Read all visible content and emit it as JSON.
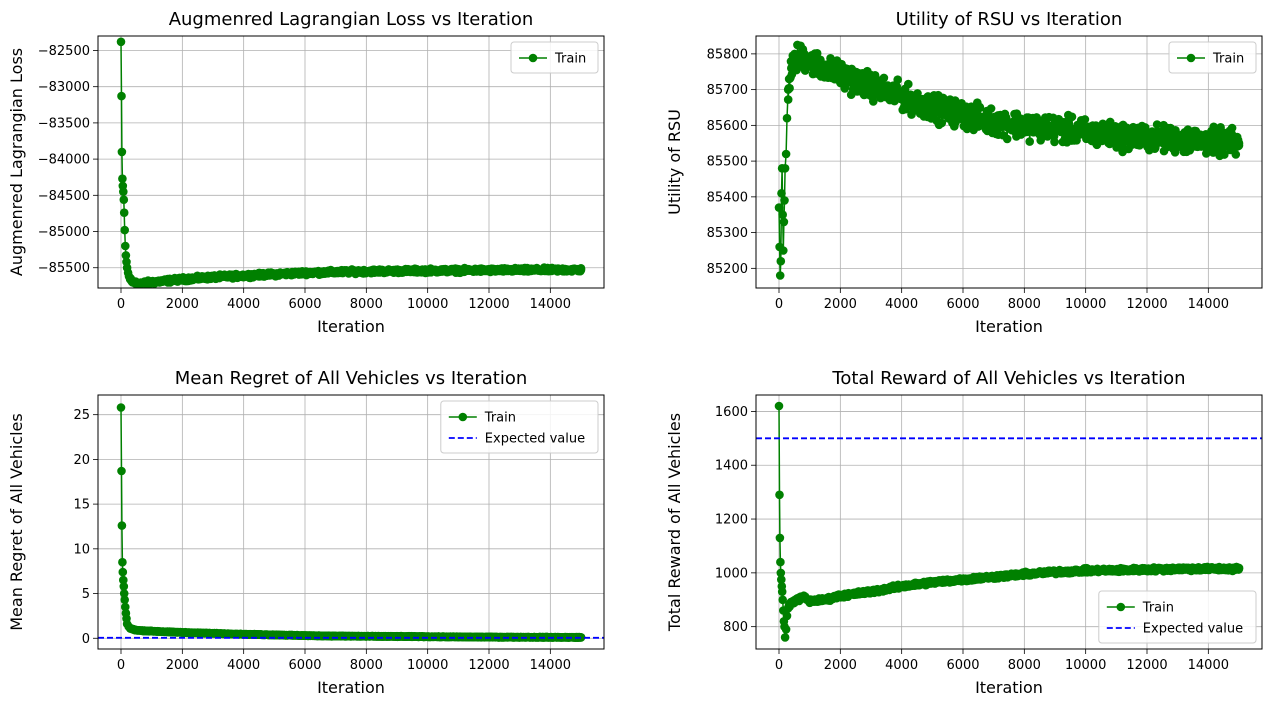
{
  "chart_data": [
    {
      "type": "line",
      "title": "Augmenred Lagrangian Loss vs Iteration",
      "xlabel": "Iteration",
      "ylabel": "Augmenred Lagrangian Loss",
      "xlim": [
        -750,
        15750
      ],
      "ylim": [
        -85780,
        -82300
      ],
      "xticks": [
        0,
        2000,
        4000,
        6000,
        8000,
        10000,
        12000,
        14000
      ],
      "xtick_labels": [
        "0",
        "2000",
        "4000",
        "6000",
        "8000",
        "10000",
        "12000",
        "14000"
      ],
      "yticks": [
        -85500,
        -85000,
        -84500,
        -84000,
        -83500,
        -83000,
        -82500
      ],
      "ytick_labels": [
        "−85500",
        "−85000",
        "−84500",
        "−84000",
        "−83500",
        "−83000",
        "−82500"
      ],
      "grid": true,
      "legend": {
        "placement": "top-right",
        "entries": [
          {
            "label": "Train",
            "style": "line-marker"
          }
        ]
      },
      "series": [
        {
          "name": "Train",
          "color": "#008000",
          "marker": "circle",
          "x": [
            0,
            15,
            30,
            45,
            60,
            75,
            90,
            105,
            120,
            140,
            160,
            180,
            200,
            230,
            260,
            300,
            350,
            400,
            500,
            600,
            800,
            1000,
            1500,
            2000,
            3000,
            4000,
            5000,
            6000,
            7000,
            8000,
            9000,
            10000,
            11000,
            12000,
            13000,
            14000,
            15000
          ],
          "y": [
            -82380,
            -83130,
            -83900,
            -84270,
            -84370,
            -84450,
            -84560,
            -84740,
            -84980,
            -85200,
            -85330,
            -85420,
            -85500,
            -85570,
            -85620,
            -85660,
            -85690,
            -85700,
            -85710,
            -85715,
            -85710,
            -85700,
            -85680,
            -85660,
            -85630,
            -85610,
            -85590,
            -85570,
            -85560,
            -85550,
            -85545,
            -85540,
            -85538,
            -85535,
            -85532,
            -85530,
            -85530
          ],
          "noise": 22
        }
      ]
    },
    {
      "type": "line",
      "title": "Utility of RSU vs Iteration",
      "xlabel": "Iteration",
      "ylabel": "Utility of RSU",
      "xlim": [
        -750,
        15750
      ],
      "ylim": [
        85145,
        85850
      ],
      "xticks": [
        0,
        2000,
        4000,
        6000,
        8000,
        10000,
        12000,
        14000
      ],
      "xtick_labels": [
        "0",
        "2000",
        "4000",
        "6000",
        "8000",
        "10000",
        "12000",
        "14000"
      ],
      "yticks": [
        85200,
        85300,
        85400,
        85500,
        85600,
        85700,
        85800
      ],
      "ytick_labels": [
        "85200",
        "85300",
        "85400",
        "85500",
        "85600",
        "85700",
        "85800"
      ],
      "grid": true,
      "legend": {
        "placement": "top-right",
        "entries": [
          {
            "label": "Train",
            "style": "line-marker"
          }
        ]
      },
      "series": [
        {
          "name": "Train",
          "color": "#008000",
          "marker": "circle",
          "x": [
            0,
            20,
            40,
            60,
            80,
            100,
            120,
            140,
            160,
            180,
            200,
            230,
            260,
            300,
            400,
            600,
            800,
            1000,
            1500,
            2000,
            3000,
            4000,
            5000,
            6000,
            7000,
            8000,
            9000,
            10000,
            11000,
            12000,
            13000,
            14000,
            15000
          ],
          "y": [
            85370,
            85260,
            85180,
            85220,
            85410,
            85480,
            85350,
            85250,
            85330,
            85390,
            85480,
            85520,
            85620,
            85700,
            85760,
            85790,
            85790,
            85780,
            85760,
            85740,
            85710,
            85680,
            85650,
            85630,
            85610,
            85600,
            85590,
            85580,
            85570,
            85565,
            85560,
            85555,
            85550
          ],
          "noise": 30
        }
      ]
    },
    {
      "type": "line",
      "title": "Mean Regret of All Vehicles vs Iteration",
      "xlabel": "Iteration",
      "ylabel": "Mean Regret of All Vehicles",
      "xlim": [
        -750,
        15750
      ],
      "ylim": [
        -1.2,
        27.2
      ],
      "xticks": [
        0,
        2000,
        4000,
        6000,
        8000,
        10000,
        12000,
        14000
      ],
      "xtick_labels": [
        "0",
        "2000",
        "4000",
        "6000",
        "8000",
        "10000",
        "12000",
        "14000"
      ],
      "yticks": [
        0,
        5,
        10,
        15,
        20,
        25
      ],
      "ytick_labels": [
        "0",
        "5",
        "10",
        "15",
        "20",
        "25"
      ],
      "grid": true,
      "legend": {
        "placement": "top-right",
        "entries": [
          {
            "label": "Train",
            "style": "line-marker"
          },
          {
            "label": "Expected value",
            "style": "dashed"
          }
        ]
      },
      "expected_value": 0.05,
      "expected_color": "#0000ff",
      "series": [
        {
          "name": "Train",
          "color": "#008000",
          "marker": "circle",
          "x": [
            0,
            15,
            30,
            45,
            60,
            75,
            90,
            105,
            120,
            140,
            160,
            180,
            200,
            250,
            300,
            400,
            500,
            700,
            1000,
            1500,
            2000,
            3000,
            4000,
            5000,
            6000,
            7000,
            8000,
            9000,
            10000,
            11000,
            12000,
            13000,
            14000,
            15000
          ],
          "y": [
            25.8,
            18.7,
            12.6,
            8.5,
            7.4,
            6.5,
            5.8,
            5.0,
            4.3,
            3.5,
            2.8,
            2.2,
            1.6,
            1.3,
            1.1,
            1.0,
            0.9,
            0.85,
            0.8,
            0.72,
            0.65,
            0.55,
            0.45,
            0.38,
            0.3,
            0.25,
            0.22,
            0.2,
            0.18,
            0.15,
            0.13,
            0.12,
            0.11,
            0.1
          ],
          "noise": 0.03
        }
      ]
    },
    {
      "type": "line",
      "title": "Total Reward of All Vehicles vs Iteration",
      "xlabel": "Iteration",
      "ylabel": "Total Reward of All Vehicles",
      "xlim": [
        -750,
        15750
      ],
      "ylim": [
        717,
        1661
      ],
      "xticks": [
        0,
        2000,
        4000,
        6000,
        8000,
        10000,
        12000,
        14000
      ],
      "xtick_labels": [
        "0",
        "2000",
        "4000",
        "6000",
        "8000",
        "10000",
        "12000",
        "14000"
      ],
      "yticks": [
        800,
        1000,
        1200,
        1400,
        1600
      ],
      "ytick_labels": [
        "800",
        "1000",
        "1200",
        "1400",
        "1600"
      ],
      "grid": true,
      "legend": {
        "placement": "lower-right",
        "entries": [
          {
            "label": "Train",
            "style": "line-marker"
          },
          {
            "label": "Expected value",
            "style": "dashed"
          }
        ]
      },
      "expected_value": 1500,
      "expected_color": "#0000ff",
      "series": [
        {
          "name": "Train",
          "color": "#008000",
          "marker": "circle",
          "x": [
            0,
            15,
            30,
            45,
            60,
            75,
            90,
            105,
            120,
            140,
            160,
            180,
            200,
            230,
            260,
            300,
            400,
            600,
            800,
            1000,
            1500,
            2000,
            3000,
            4000,
            5000,
            6000,
            7000,
            8000,
            9000,
            10000,
            11000,
            12000,
            13000,
            14000,
            15000
          ],
          "y": [
            1620,
            1290,
            1130,
            1040,
            1000,
            975,
            950,
            930,
            900,
            860,
            820,
            800,
            760,
            790,
            840,
            870,
            890,
            900,
            910,
            895,
            900,
            915,
            930,
            950,
            965,
            975,
            985,
            995,
            1003,
            1008,
            1010,
            1012,
            1015,
            1015,
            1015
          ],
          "noise": 6
        }
      ]
    }
  ]
}
